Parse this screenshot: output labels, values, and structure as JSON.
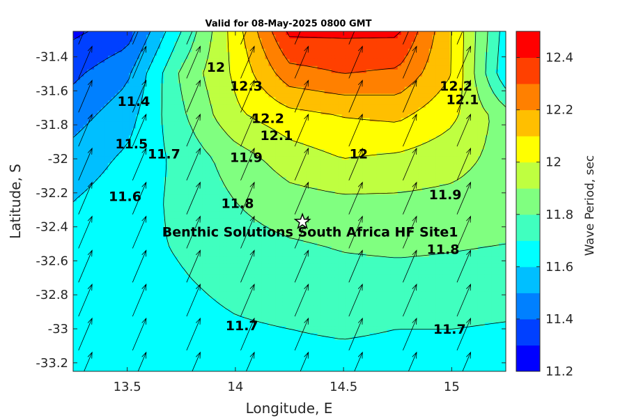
{
  "chart_data": {
    "type": "heatmap",
    "title": "Valid for 08-May-2025 0800 GMT",
    "xlabel": "Longitude, E",
    "ylabel": "Latitude, S",
    "xlim": [
      13.25,
      15.25
    ],
    "ylim": [
      -33.25,
      -31.25
    ],
    "x_ticks": [
      13.5,
      14,
      14.5,
      15
    ],
    "x_tick_labels": [
      "13.5",
      "14",
      "14.5",
      "15"
    ],
    "y_ticks": [
      -31.4,
      -31.6,
      -31.8,
      -32,
      -32.2,
      -32.4,
      -32.6,
      -32.8,
      -33,
      -33.2
    ],
    "y_tick_labels": [
      "-31.4",
      "-31.6",
      "-31.8",
      "-32",
      "-32.2",
      "-32.4",
      "-32.6",
      "-32.8",
      "-33",
      "-33.2"
    ],
    "colorbar": {
      "label": "Wave Period, sec",
      "range": [
        11.2,
        12.5
      ],
      "ticks": [
        11.2,
        11.4,
        11.6,
        11.8,
        12,
        12.2,
        12.4
      ],
      "tick_labels": [
        "11.2",
        "11.4",
        "11.6",
        "11.8",
        "12",
        "12.2",
        "12.4"
      ],
      "levels": [
        {
          "min": 11.2,
          "max": 11.3,
          "color": "#0000ff"
        },
        {
          "min": 11.3,
          "max": 11.4,
          "color": "#0040ff"
        },
        {
          "min": 11.4,
          "max": 11.5,
          "color": "#0080ff"
        },
        {
          "min": 11.5,
          "max": 11.6,
          "color": "#00bfff"
        },
        {
          "min": 11.6,
          "max": 11.7,
          "color": "#00ffff"
        },
        {
          "min": 11.7,
          "max": 11.8,
          "color": "#40ffbf"
        },
        {
          "min": 11.8,
          "max": 11.9,
          "color": "#80ff80"
        },
        {
          "min": 11.9,
          "max": 12.0,
          "color": "#bfff40"
        },
        {
          "min": 12.0,
          "max": 12.1,
          "color": "#ffff00"
        },
        {
          "min": 12.1,
          "max": 12.2,
          "color": "#ffbf00"
        },
        {
          "min": 12.2,
          "max": 12.3,
          "color": "#ff8000"
        },
        {
          "min": 12.3,
          "max": 12.4,
          "color": "#ff4000"
        },
        {
          "min": 12.4,
          "max": 12.5,
          "color": "#ff0000"
        }
      ]
    },
    "x_grid": [
      13.25,
      13.5,
      13.75,
      14.0,
      14.25,
      14.5,
      14.75,
      15.0,
      15.25
    ],
    "y_grid": [
      -31.25,
      -31.5,
      -31.75,
      -32.0,
      -32.25,
      -32.5,
      -32.75,
      -33.0,
      -33.25
    ],
    "grid_values": [
      [
        11.28,
        11.35,
        11.7,
        12.05,
        12.42,
        12.42,
        12.42,
        12.1,
        11.65
      ],
      [
        11.38,
        11.48,
        11.82,
        12.02,
        12.26,
        12.3,
        12.28,
        12.1,
        11.62
      ],
      [
        11.46,
        11.56,
        11.78,
        11.98,
        12.06,
        12.1,
        12.12,
        12.02,
        11.85
      ],
      [
        11.54,
        11.62,
        11.73,
        11.85,
        11.95,
        12.0,
        11.98,
        11.94,
        11.86
      ],
      [
        11.6,
        11.66,
        11.72,
        11.8,
        11.86,
        11.88,
        11.88,
        11.87,
        11.85
      ],
      [
        11.64,
        11.67,
        11.71,
        11.76,
        11.79,
        11.81,
        11.82,
        11.81,
        11.8
      ],
      [
        11.66,
        11.67,
        11.69,
        11.72,
        11.74,
        11.76,
        11.76,
        11.76,
        11.75
      ],
      [
        11.66,
        11.66,
        11.67,
        11.69,
        11.7,
        11.71,
        11.7,
        11.7,
        11.69
      ],
      [
        11.66,
        11.66,
        11.66,
        11.67,
        11.67,
        11.67,
        11.67,
        11.67,
        11.66
      ]
    ],
    "contour_labels": [
      {
        "text": "11.4",
        "x": 13.53,
        "y": -31.66
      },
      {
        "text": "11.5",
        "x": 13.52,
        "y": -31.91
      },
      {
        "text": "11.6",
        "x": 13.49,
        "y": -32.22
      },
      {
        "text": "11.7",
        "x": 13.67,
        "y": -31.97
      },
      {
        "text": "11.7",
        "x": 14.03,
        "y": -32.98
      },
      {
        "text": "11.7",
        "x": 14.99,
        "y": -33.0
      },
      {
        "text": "11.8",
        "x": 14.01,
        "y": -32.26
      },
      {
        "text": "11.8",
        "x": 14.96,
        "y": -32.53
      },
      {
        "text": "11.9",
        "x": 14.05,
        "y": -31.99
      },
      {
        "text": "11.9",
        "x": 14.97,
        "y": -32.21
      },
      {
        "text": "12",
        "x": 14.57,
        "y": -31.97
      },
      {
        "text": "12",
        "x": 13.91,
        "y": -31.46
      },
      {
        "text": "12.1",
        "x": 14.19,
        "y": -31.86
      },
      {
        "text": "12.1",
        "x": 15.05,
        "y": -31.65
      },
      {
        "text": "12.2",
        "x": 14.15,
        "y": -31.76
      },
      {
        "text": "12.2",
        "x": 15.02,
        "y": -31.57
      },
      {
        "text": "12.3",
        "x": 14.05,
        "y": -31.57
      }
    ],
    "site": {
      "name": "Benthic Solutions South Africa HF Site1",
      "lon": 14.31,
      "lat": -32.37
    },
    "vector_field": {
      "direction_deg_from_north": 23,
      "x_step": 0.25,
      "y_step": 0.2
    }
  }
}
